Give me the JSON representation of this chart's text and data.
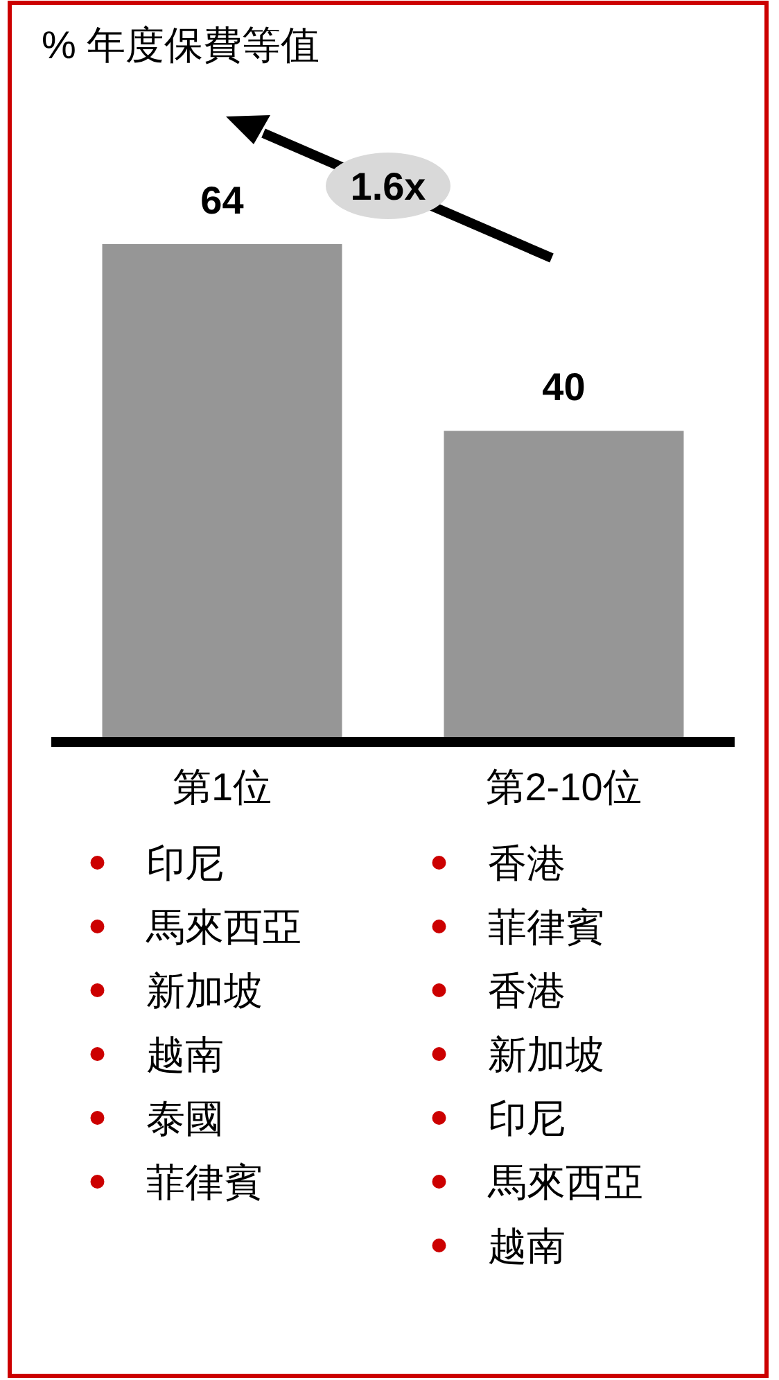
{
  "chart_data": {
    "type": "bar",
    "title": "% 年度保費等值",
    "categories": [
      "第1位",
      "第2-10位"
    ],
    "values": [
      64,
      40
    ],
    "color": "#969696",
    "data_labels": true,
    "annotations": [
      "1.6x",
      "印尼",
      "馬來西亞",
      "新加坡",
      "越南",
      "泰國",
      "菲律賓",
      "香港",
      "菲律賓",
      "香港",
      "新加坡",
      "印尼",
      "馬來西亞",
      "越南"
    ]
  }
}
